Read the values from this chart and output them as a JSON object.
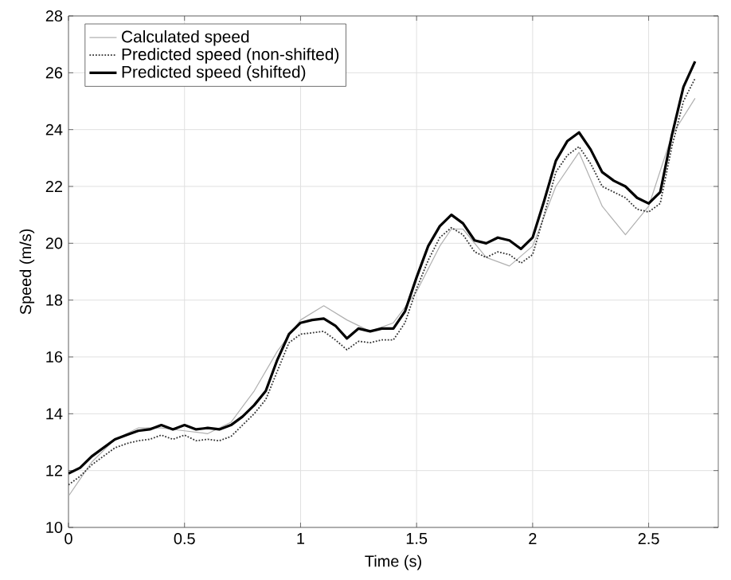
{
  "chart_data": {
    "type": "line",
    "xlabel": "Time (s)",
    "ylabel": "Speed (m/s)",
    "xlim": [
      0,
      2.8
    ],
    "ylim": [
      10,
      28
    ],
    "xticks": [
      0,
      0.5,
      1,
      1.5,
      2,
      2.5
    ],
    "yticks": [
      10,
      12,
      14,
      16,
      18,
      20,
      22,
      24,
      26,
      28
    ],
    "grid": true,
    "legend": "top left",
    "marker": "none",
    "series": [
      {
        "name": "Calculated speed",
        "color": "#b0b0b0",
        "line_style": "solid",
        "x": [
          0,
          0.05,
          0.1,
          0.2,
          0.3,
          0.4,
          0.5,
          0.6,
          0.7,
          0.8,
          0.9,
          1.0,
          1.1,
          1.2,
          1.3,
          1.4,
          1.5,
          1.6,
          1.65,
          1.7,
          1.8,
          1.9,
          2.0,
          2.1,
          2.2,
          2.3,
          2.4,
          2.5,
          2.6,
          2.7
        ],
        "values": [
          11.1,
          11.7,
          12.3,
          13.1,
          13.5,
          13.5,
          13.4,
          13.3,
          13.7,
          14.8,
          16.2,
          17.3,
          17.8,
          17.3,
          16.9,
          17.2,
          18.3,
          19.9,
          20.5,
          20.5,
          19.5,
          19.2,
          19.9,
          22.0,
          23.2,
          21.3,
          20.3,
          21.3,
          23.8,
          25.1
        ]
      },
      {
        "name": "Predicted speed (non-shifted)",
        "color": "#333333",
        "line_style": "dotted",
        "x": [
          0,
          0.05,
          0.1,
          0.15,
          0.2,
          0.25,
          0.3,
          0.35,
          0.4,
          0.45,
          0.5,
          0.55,
          0.6,
          0.65,
          0.7,
          0.75,
          0.8,
          0.85,
          0.9,
          0.95,
          1.0,
          1.05,
          1.1,
          1.15,
          1.2,
          1.25,
          1.3,
          1.35,
          1.4,
          1.45,
          1.5,
          1.55,
          1.6,
          1.65,
          1.7,
          1.75,
          1.8,
          1.85,
          1.9,
          1.95,
          2.0,
          2.05,
          2.1,
          2.15,
          2.2,
          2.25,
          2.3,
          2.35,
          2.4,
          2.45,
          2.5,
          2.55,
          2.6,
          2.65,
          2.7
        ],
        "values": [
          11.5,
          11.8,
          12.2,
          12.5,
          12.8,
          12.95,
          13.05,
          13.1,
          13.25,
          13.1,
          13.25,
          13.05,
          13.1,
          13.05,
          13.2,
          13.6,
          14.0,
          14.5,
          15.5,
          16.5,
          16.8,
          16.85,
          16.9,
          16.6,
          16.25,
          16.55,
          16.5,
          16.6,
          16.6,
          17.2,
          18.4,
          19.4,
          20.2,
          20.55,
          20.3,
          19.7,
          19.5,
          19.7,
          19.6,
          19.3,
          19.6,
          21.0,
          22.5,
          23.1,
          23.4,
          22.8,
          22.0,
          21.8,
          21.6,
          21.2,
          21.1,
          21.4,
          23.4,
          25.0,
          25.8
        ]
      },
      {
        "name": "Predicted speed (shifted)",
        "color": "#000000",
        "line_style": "solid",
        "x": [
          0,
          0.05,
          0.1,
          0.15,
          0.2,
          0.25,
          0.3,
          0.35,
          0.4,
          0.45,
          0.5,
          0.55,
          0.6,
          0.65,
          0.7,
          0.75,
          0.8,
          0.85,
          0.9,
          0.95,
          1.0,
          1.05,
          1.1,
          1.15,
          1.2,
          1.25,
          1.3,
          1.35,
          1.4,
          1.45,
          1.5,
          1.55,
          1.6,
          1.65,
          1.7,
          1.75,
          1.8,
          1.85,
          1.9,
          1.95,
          2.0,
          2.05,
          2.1,
          2.15,
          2.2,
          2.25,
          2.3,
          2.35,
          2.4,
          2.45,
          2.5,
          2.55,
          2.6,
          2.65,
          2.7
        ],
        "values": [
          11.9,
          12.1,
          12.5,
          12.8,
          13.1,
          13.25,
          13.4,
          13.45,
          13.6,
          13.45,
          13.6,
          13.45,
          13.5,
          13.45,
          13.6,
          13.9,
          14.3,
          14.8,
          15.9,
          16.8,
          17.2,
          17.3,
          17.35,
          17.1,
          16.65,
          17.0,
          16.9,
          17.0,
          17.0,
          17.6,
          18.8,
          19.9,
          20.6,
          21.0,
          20.7,
          20.1,
          20.0,
          20.2,
          20.1,
          19.8,
          20.2,
          21.5,
          22.9,
          23.6,
          23.9,
          23.3,
          22.5,
          22.2,
          22.0,
          21.6,
          21.4,
          21.8,
          23.8,
          25.5,
          26.4
        ]
      }
    ]
  }
}
